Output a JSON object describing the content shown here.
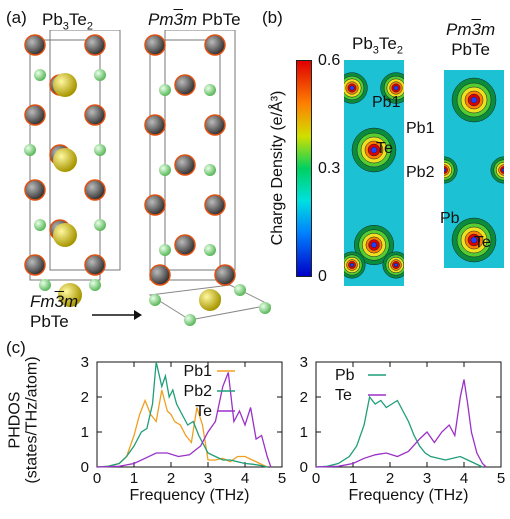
{
  "panel_labels": {
    "a": "(a)",
    "b": "(b)",
    "c": "(c)"
  },
  "panel_a": {
    "structure_1": {
      "name": "Pb",
      "sub": "3",
      "name2": "Te",
      "sub2": "2"
    },
    "structure_2": {
      "prefix_italic": "Pm",
      "bar_char": "3",
      "suffix_italic": "m",
      "name": " PbTe"
    },
    "structure_3": {
      "prefix_italic": "Fm",
      "bar_char": "3",
      "suffix_italic": "m",
      "name": "PbTe"
    }
  },
  "panel_b": {
    "colorbar": {
      "label": "Charge Density (e/Å³)",
      "ticks": [
        "0.6",
        "0.3",
        "0"
      ],
      "range": [
        0,
        0.6
      ]
    },
    "map_1_title": {
      "name": "Pb",
      "sub": "3",
      "name2": "Te",
      "sub2": "2"
    },
    "map_2_title": {
      "prefix_italic": "Pm",
      "bar_char": "3",
      "suffix_italic": "m",
      "line2": "PbTe"
    },
    "map_1_atoms": [
      "Pb1",
      "Te",
      "Pb1",
      "Pb2"
    ],
    "map_2_atoms": [
      "Pb",
      "Te"
    ]
  },
  "colors": {
    "pb1": "#f0a020",
    "pb2": "#1f9e78",
    "te": "#9b30c8",
    "pb_atom": "#555555",
    "te_atom": "#90d890",
    "contour_bg": "#16c4d8"
  },
  "chart_data": [
    {
      "type": "line",
      "xlabel": "Frequency (THz)",
      "ylabel": "PHDOS",
      "ylabel2": "(states/THz/atom)",
      "xlim": [
        0,
        5
      ],
      "ylim": [
        0,
        3
      ],
      "xticks": [
        "0",
        "1",
        "2",
        "3",
        "4",
        "5"
      ],
      "yticks": [
        "0",
        "1",
        "2",
        "3"
      ],
      "series": [
        {
          "name": "Pb1",
          "color": "#f0a020",
          "x": [
            0,
            0.3,
            0.6,
            0.8,
            1.0,
            1.15,
            1.3,
            1.45,
            1.6,
            1.75,
            1.9,
            2.0,
            2.1,
            2.25,
            2.4,
            2.55,
            2.7,
            2.85,
            3.0,
            3.2,
            3.4,
            3.6,
            3.8,
            4.0,
            4.2,
            4.4,
            4.6
          ],
          "y": [
            0,
            0.02,
            0.1,
            0.3,
            0.9,
            1.5,
            1.9,
            1.5,
            1.3,
            2.2,
            1.6,
            1.5,
            1.3,
            1.2,
            0.9,
            0.7,
            1.7,
            1.2,
            0.2,
            0.2,
            0.25,
            0.15,
            0.3,
            0.3,
            0.2,
            0.1,
            0
          ]
        },
        {
          "name": "Pb2",
          "color": "#1f9e78",
          "x": [
            0,
            0.3,
            0.6,
            0.8,
            1.0,
            1.2,
            1.35,
            1.5,
            1.6,
            1.75,
            1.85,
            1.95,
            2.05,
            2.15,
            2.3,
            2.45,
            2.6,
            2.75,
            2.9,
            3.0,
            3.2,
            3.4,
            3.6,
            3.8,
            4.0,
            4.2,
            4.4,
            4.6
          ],
          "y": [
            0,
            0.02,
            0.1,
            0.3,
            0.6,
            1.0,
            1.1,
            1.8,
            3.0,
            2.3,
            2.6,
            2.0,
            2.2,
            1.8,
            1.5,
            1.2,
            1.3,
            0.9,
            0.6,
            0.4,
            0.3,
            0.2,
            0.2,
            0.15,
            0.1,
            0.08,
            0.05,
            0
          ]
        },
        {
          "name": "Te",
          "color": "#9b30c8",
          "x": [
            0,
            0.6,
            1.0,
            1.3,
            1.6,
            1.9,
            2.2,
            2.5,
            2.8,
            3.0,
            3.2,
            3.4,
            3.55,
            3.7,
            3.85,
            4.0,
            4.15,
            4.3,
            4.45,
            4.6,
            4.7
          ],
          "y": [
            0,
            0.02,
            0.1,
            0.25,
            0.4,
            0.4,
            0.3,
            0.35,
            0.6,
            1.0,
            1.3,
            2.3,
            2.7,
            1.3,
            1.6,
            1.2,
            1.7,
            0.8,
            0.9,
            0.3,
            0
          ]
        }
      ]
    },
    {
      "type": "line",
      "xlabel": "Frequency (THz)",
      "xlim": [
        0,
        5
      ],
      "ylim": [
        0,
        3
      ],
      "xticks": [
        "0",
        "1",
        "2",
        "3",
        "4",
        "5"
      ],
      "yticks": [
        "0",
        "1",
        "2",
        "3"
      ],
      "series": [
        {
          "name": "Pb",
          "color": "#1f9e78",
          "x": [
            0,
            0.3,
            0.6,
            0.9,
            1.1,
            1.3,
            1.45,
            1.6,
            1.75,
            1.9,
            2.05,
            2.2,
            2.35,
            2.5,
            2.65,
            2.8,
            2.95,
            3.1,
            3.3,
            3.5,
            3.7,
            3.9,
            4.1,
            4.3,
            4.5
          ],
          "y": [
            0,
            0.02,
            0.1,
            0.3,
            0.6,
            1.2,
            2.0,
            1.8,
            1.9,
            1.7,
            1.8,
            1.9,
            1.6,
            1.3,
            0.9,
            0.6,
            0.4,
            0.3,
            0.25,
            0.2,
            0.25,
            0.3,
            0.2,
            0.1,
            0
          ]
        },
        {
          "name": "Te",
          "color": "#9b30c8",
          "x": [
            0,
            0.6,
            1.0,
            1.3,
            1.6,
            1.9,
            2.2,
            2.5,
            2.8,
            3.0,
            3.2,
            3.4,
            3.6,
            3.75,
            3.9,
            4.0,
            4.1,
            4.2,
            4.35,
            4.5,
            4.6
          ],
          "y": [
            0,
            0.02,
            0.1,
            0.25,
            0.35,
            0.4,
            0.3,
            0.45,
            0.8,
            1.0,
            0.7,
            1.0,
            1.2,
            0.9,
            2.0,
            2.5,
            1.8,
            1.0,
            0.4,
            0.1,
            0
          ]
        }
      ]
    }
  ]
}
